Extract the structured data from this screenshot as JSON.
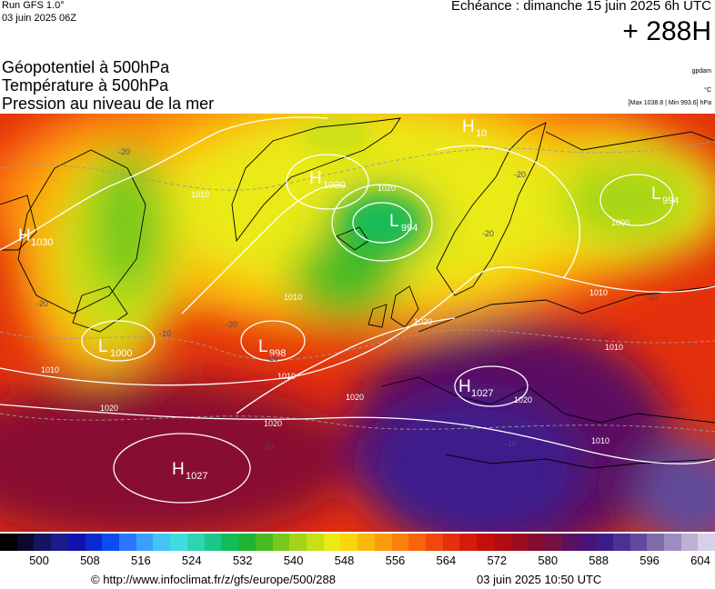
{
  "header": {
    "run": "Run GFS 1.0°",
    "date": "03 juin 2025 06Z",
    "echeance": "Echéance : dimanche 15 juin 2025 6h UTC",
    "hour": "+ 288H"
  },
  "titles": [
    "Géopotentiel à 500hPa",
    "Température à 500hPa",
    "Pression au niveau de la mer"
  ],
  "units": {
    "geopotential": "gpdam",
    "temperature": "°C",
    "pressure": "[Max 1038.8 | Min 993.6] hPa"
  },
  "pressure_centers": [
    {
      "type": "H",
      "value": "1030"
    },
    {
      "type": "H",
      "value": "1030"
    },
    {
      "type": "H",
      "value": "10"
    },
    {
      "type": "L",
      "value": "994"
    },
    {
      "type": "L",
      "value": "994"
    },
    {
      "type": "L",
      "value": "1000"
    },
    {
      "type": "L",
      "value": "998"
    },
    {
      "type": "H",
      "value": "1027"
    },
    {
      "type": "H",
      "value": "1027"
    }
  ],
  "isobar_labels": [
    "1010",
    "1020",
    "1010",
    "1020",
    "1010",
    "1010",
    "1020",
    "1020",
    "1020",
    "1010",
    "1000",
    "1010",
    "1020",
    "1010"
  ],
  "temperature_labels": [
    "-20",
    "-20",
    "-20",
    "-20",
    "-10",
    "-20",
    "-20",
    "-10",
    "-10",
    "-10"
  ],
  "colorbar": {
    "colors": [
      "#000000",
      "#0a0a2c",
      "#141460",
      "#1c1c8c",
      "#1212b0",
      "#0a2ad0",
      "#0a4cf0",
      "#2a78ff",
      "#3aa0ff",
      "#44c4f4",
      "#40dce0",
      "#2cd4b0",
      "#1cc888",
      "#12bc58",
      "#20b434",
      "#48bc24",
      "#78c81c",
      "#a4d418",
      "#c8e014",
      "#eaea14",
      "#fcd40c",
      "#fcb80c",
      "#fc9c0c",
      "#fc800c",
      "#f8640c",
      "#f0480c",
      "#e4300c",
      "#d41c0c",
      "#c41008",
      "#b00c14",
      "#9c0c20",
      "#880c30",
      "#741044",
      "#5c1060",
      "#481478",
      "#3c1c8c",
      "#4c3094",
      "#604c9c",
      "#7c6cac",
      "#9c8cc0",
      "#bcb0d4",
      "#d8d0e8"
    ],
    "ticks": [
      "500",
      "508",
      "516",
      "524",
      "532",
      "540",
      "548",
      "556",
      "564",
      "572",
      "580",
      "588",
      "596",
      "604"
    ]
  },
  "footer": {
    "credit": "© http://www.infoclimat.fr/z/gfs/europe/500/288",
    "stamp": "03 juin 2025 10:50 UTC"
  }
}
